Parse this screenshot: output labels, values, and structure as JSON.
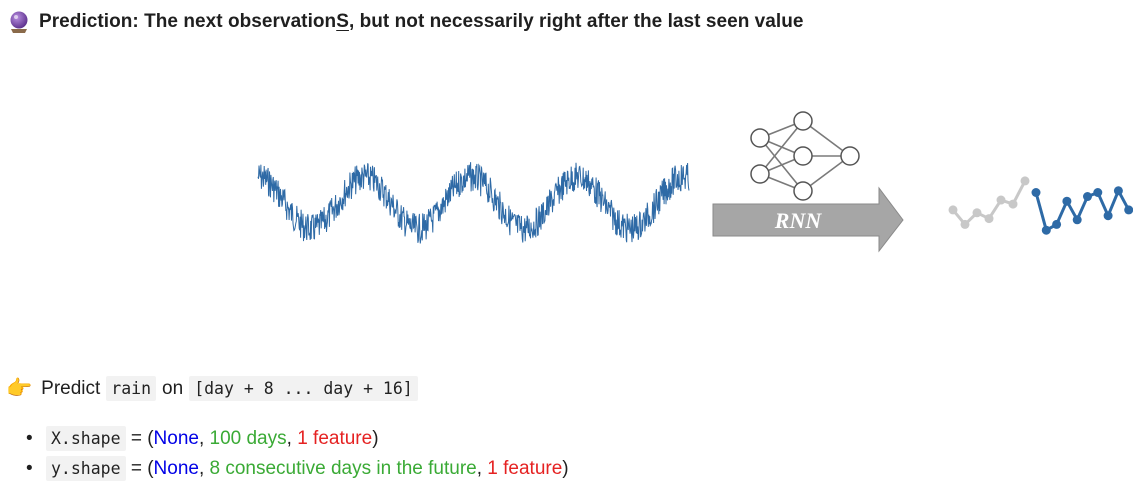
{
  "title": {
    "prefix": "Prediction: The next observation",
    "underlined": "S",
    "suffix": ", but not necessarily right after the last seen value"
  },
  "figure": {
    "arrow_label": "RNN",
    "colors": {
      "series": "#2e6aa6",
      "past": "#c8c8c8",
      "future": "#2e6aa6",
      "arrow": "#a6a6a6"
    },
    "past_values": [
      0.45,
      0.2,
      0.4,
      0.3,
      0.62,
      0.55,
      0.95
    ],
    "future_values": [
      0.75,
      0.1,
      0.2,
      0.6,
      0.28,
      0.68,
      0.75,
      0.35,
      0.78,
      0.45
    ]
  },
  "predict": {
    "icon": "backhand-index-pointing-right",
    "text_predict": "Predict",
    "code_target": "rain",
    "text_on": "on",
    "code_range": "[day + 8 ... day + 16]"
  },
  "shapes": {
    "x": {
      "code": "X.shape",
      "eq": " = (",
      "none": "None",
      "sep1": ", ",
      "steps": "100 days",
      "sep2": ", ",
      "feat": "1 feature",
      "close": ")"
    },
    "y": {
      "code": "y.shape",
      "eq": " = (",
      "none": "None",
      "sep1": ", ",
      "steps": "8 consecutive days in the future",
      "sep2": ", ",
      "feat": "1 feature",
      "close": ")"
    }
  }
}
